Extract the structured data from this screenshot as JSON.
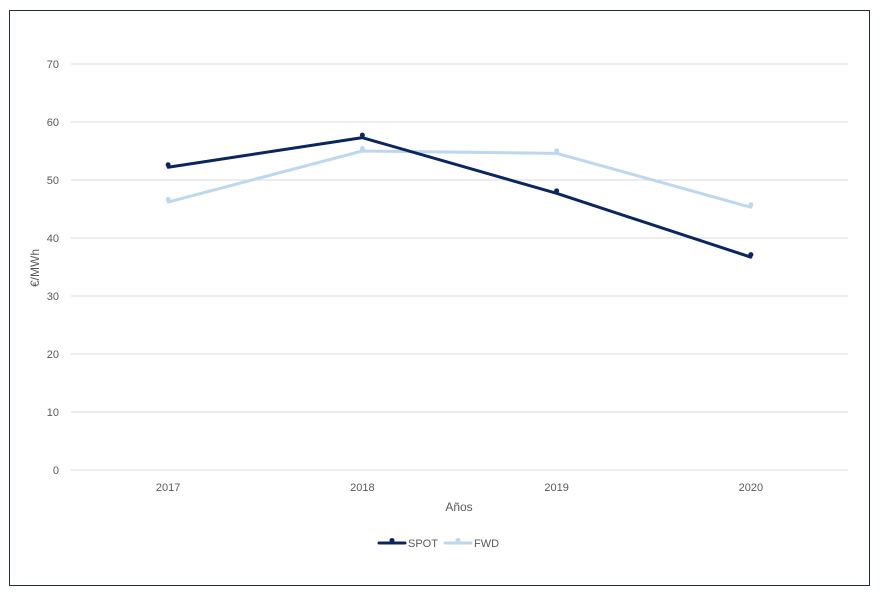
{
  "chart_data": {
    "type": "line",
    "categories": [
      "2017",
      "2018",
      "2019",
      "2020"
    ],
    "series": [
      {
        "name": "SPOT",
        "values": [
          52.2,
          57.3,
          47.7,
          36.7
        ],
        "color": "#0b2561"
      },
      {
        "name": "FWD",
        "values": [
          46.2,
          55.0,
          54.6,
          45.3
        ],
        "color": "#bdd7ee"
      }
    ],
    "title": "",
    "xlabel": "Años",
    "ylabel": "€/MWh",
    "ylim": [
      0,
      70
    ],
    "yticks": [
      "0",
      "10",
      "20",
      "30",
      "40",
      "50",
      "60",
      "70"
    ],
    "grid": true,
    "legend_position": "bottom"
  }
}
